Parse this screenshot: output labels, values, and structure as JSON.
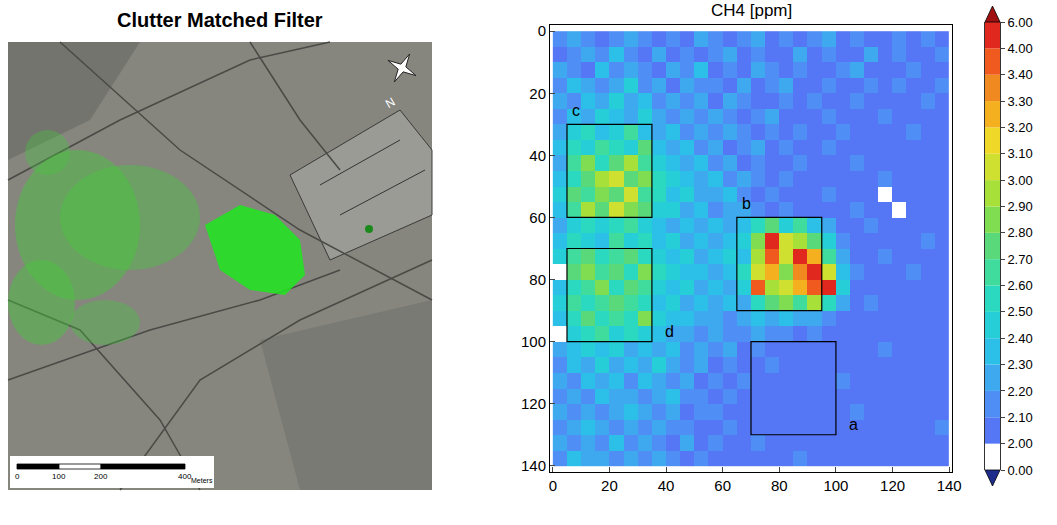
{
  "chart_data": [
    {
      "type": "map",
      "title": "Clutter Matched Filter",
      "north": "N",
      "scale_bar": {
        "ticks": [
          0,
          100,
          200,
          400
        ],
        "unit": "Meters"
      }
    },
    {
      "type": "heatmap",
      "title": "CH4 [ppm]",
      "x": [
        2.5,
        7.5,
        12.5,
        17.5,
        22.5,
        27.5,
        32.5,
        37.5,
        42.5,
        47.5,
        52.5,
        57.5,
        62.5,
        67.5,
        72.5,
        77.5,
        82.5,
        87.5,
        92.5,
        97.5,
        102.5,
        107.5,
        112.5,
        117.5,
        122.5,
        127.5,
        132.5,
        137.5
      ],
      "y": [
        2.5,
        7.5,
        12.5,
        17.5,
        22.5,
        27.5,
        32.5,
        37.5,
        42.5,
        47.5,
        52.5,
        57.5,
        62.5,
        67.5,
        72.5,
        77.5,
        82.5,
        87.5,
        92.5,
        97.5,
        102.5,
        107.5,
        112.5,
        117.5,
        122.5,
        127.5,
        132.5,
        137.5
      ],
      "z": [
        [
          2.1,
          2.2,
          2.1,
          2.05,
          2.1,
          2.2,
          2.1,
          2.05,
          2.1,
          2.05,
          2.2,
          2.1,
          2.05,
          2.1,
          2.2,
          2.05,
          2.1,
          2.05,
          2.1,
          2.2,
          2.05,
          2.1,
          2.05,
          2.05,
          2.1,
          2.05,
          2.1,
          2.05
        ],
        [
          2.05,
          2.1,
          2.2,
          2.1,
          2.3,
          2.1,
          2.05,
          2.2,
          2.05,
          2.1,
          2.05,
          2.1,
          2.2,
          2.05,
          2.1,
          2.05,
          2.05,
          2.2,
          2.05,
          2.1,
          2.05,
          2.05,
          2.2,
          2.05,
          2.1,
          2.05,
          2.05,
          2.1
        ],
        [
          2.2,
          2.1,
          2.05,
          2.3,
          2.1,
          2.2,
          2.1,
          2.05,
          2.2,
          2.1,
          2.3,
          2.05,
          2.1,
          2.05,
          2.2,
          2.1,
          2.05,
          2.1,
          2.05,
          2.05,
          2.1,
          2.2,
          2.05,
          2.05,
          2.05,
          2.1,
          2.05,
          2.05
        ],
        [
          2.1,
          2.3,
          2.2,
          2.1,
          2.2,
          2.4,
          2.1,
          2.2,
          2.05,
          2.2,
          2.1,
          2.1,
          2.05,
          2.2,
          2.05,
          2.1,
          2.2,
          2.05,
          2.05,
          2.1,
          2.05,
          2.05,
          2.1,
          2.05,
          2.15,
          2.05,
          2.05,
          2.1
        ],
        [
          2.2,
          2.1,
          2.3,
          2.2,
          2.4,
          2.2,
          2.3,
          2.1,
          2.2,
          2.1,
          2.2,
          2.05,
          2.2,
          2.1,
          2.05,
          2.05,
          2.1,
          2.05,
          2.1,
          2.05,
          2.05,
          2.1,
          2.05,
          2.05,
          2.05,
          2.05,
          2.1,
          2.05
        ],
        [
          2.1,
          2.3,
          2.2,
          2.4,
          2.3,
          2.2,
          2.4,
          2.2,
          2.1,
          2.2,
          2.1,
          2.2,
          2.1,
          2.05,
          2.1,
          2.2,
          2.05,
          2.05,
          2.05,
          2.1,
          2.05,
          2.05,
          2.05,
          2.1,
          2.05,
          2.05,
          2.05,
          2.05
        ],
        [
          2.2,
          2.4,
          2.5,
          2.3,
          2.4,
          2.6,
          2.3,
          2.2,
          2.3,
          2.1,
          2.2,
          2.1,
          2.2,
          2.1,
          2.05,
          2.1,
          2.05,
          2.1,
          2.05,
          2.05,
          2.1,
          2.05,
          2.05,
          2.05,
          2.05,
          2.1,
          2.05,
          2.05
        ],
        [
          2.3,
          2.5,
          2.4,
          2.6,
          2.5,
          2.4,
          2.7,
          2.3,
          2.2,
          2.3,
          2.1,
          2.2,
          2.05,
          2.1,
          2.2,
          2.05,
          2.1,
          2.05,
          2.05,
          2.1,
          2.05,
          2.05,
          2.05,
          2.05,
          2.05,
          2.05,
          2.05,
          2.05
        ],
        [
          2.2,
          2.6,
          2.8,
          2.5,
          2.7,
          2.9,
          2.6,
          2.4,
          2.3,
          2.2,
          2.3,
          2.1,
          2.2,
          2.05,
          2.1,
          2.05,
          2.05,
          2.1,
          2.05,
          2.05,
          2.05,
          2.1,
          2.05,
          2.05,
          2.05,
          2.05,
          2.05,
          2.05
        ],
        [
          2.3,
          2.5,
          2.7,
          2.9,
          3.0,
          2.7,
          2.8,
          2.5,
          2.4,
          2.3,
          2.2,
          2.3,
          2.1,
          2.2,
          2.1,
          2.05,
          2.1,
          2.05,
          2.05,
          2.05,
          2.05,
          2.05,
          2.05,
          2.1,
          2.05,
          2.05,
          2.05,
          2.05
        ],
        [
          2.4,
          2.7,
          2.6,
          2.8,
          2.7,
          3.0,
          2.6,
          2.5,
          2.3,
          2.4,
          2.2,
          2.2,
          2.3,
          2.1,
          2.05,
          2.1,
          2.05,
          2.05,
          2.05,
          2.1,
          2.05,
          2.05,
          2.05,
          1.5,
          2.05,
          2.05,
          2.05,
          2.05
        ],
        [
          2.3,
          2.6,
          2.9,
          2.7,
          3.1,
          2.8,
          2.7,
          2.4,
          2.4,
          2.2,
          2.3,
          2.1,
          2.2,
          2.2,
          2.1,
          2.05,
          2.1,
          2.05,
          2.05,
          2.05,
          2.05,
          2.1,
          2.05,
          2.05,
          1.5,
          2.05,
          2.05,
          2.05
        ],
        [
          2.2,
          2.4,
          2.5,
          2.4,
          2.5,
          2.6,
          2.4,
          2.3,
          2.2,
          2.3,
          2.2,
          2.3,
          2.2,
          2.3,
          2.5,
          2.7,
          2.4,
          2.6,
          2.3,
          2.2,
          2.05,
          2.05,
          2.1,
          2.05,
          2.05,
          2.05,
          2.05,
          2.05
        ],
        [
          2.3,
          2.5,
          2.4,
          2.3,
          2.6,
          2.4,
          2.5,
          2.3,
          2.4,
          2.2,
          2.3,
          2.2,
          2.3,
          2.4,
          2.8,
          4.0,
          3.1,
          2.9,
          2.7,
          2.4,
          2.1,
          2.05,
          2.05,
          2.05,
          2.05,
          2.05,
          2.1,
          2.05
        ],
        [
          2.4,
          2.6,
          2.7,
          2.5,
          2.6,
          2.7,
          2.5,
          2.4,
          2.3,
          2.4,
          2.2,
          2.3,
          2.4,
          2.3,
          2.9,
          3.4,
          3.0,
          4.0,
          3.2,
          2.6,
          2.2,
          2.05,
          2.05,
          2.1,
          2.05,
          2.05,
          2.05,
          2.05
        ],
        [
          1.5,
          2.7,
          2.8,
          2.6,
          2.7,
          2.5,
          2.8,
          2.5,
          2.4,
          2.3,
          2.3,
          2.2,
          2.3,
          2.5,
          3.0,
          3.2,
          2.8,
          3.3,
          4.0,
          3.0,
          2.3,
          2.1,
          2.05,
          2.05,
          2.05,
          2.1,
          2.05,
          2.05
        ],
        [
          2.3,
          2.5,
          2.6,
          2.8,
          2.5,
          2.7,
          2.6,
          2.4,
          2.3,
          2.4,
          2.2,
          2.3,
          2.2,
          2.4,
          3.4,
          2.9,
          3.0,
          3.2,
          3.5,
          4.0,
          2.4,
          2.05,
          2.05,
          2.05,
          2.05,
          2.05,
          2.05,
          2.05
        ],
        [
          2.4,
          2.6,
          2.5,
          2.6,
          2.7,
          2.6,
          2.5,
          2.3,
          2.4,
          2.2,
          2.3,
          2.2,
          2.3,
          2.2,
          2.5,
          2.7,
          2.8,
          2.6,
          2.9,
          2.5,
          2.2,
          2.05,
          2.1,
          2.05,
          2.05,
          2.05,
          2.05,
          2.05
        ],
        [
          2.3,
          2.5,
          2.7,
          2.5,
          2.6,
          2.5,
          2.8,
          2.4,
          2.3,
          2.3,
          2.2,
          2.2,
          2.1,
          2.2,
          2.3,
          2.2,
          2.3,
          2.2,
          2.2,
          2.1,
          2.05,
          2.05,
          2.05,
          2.05,
          2.05,
          2.05,
          2.05,
          2.05
        ],
        [
          1.5,
          2.4,
          2.5,
          2.6,
          2.4,
          2.5,
          2.4,
          2.3,
          2.2,
          2.2,
          2.1,
          2.2,
          2.1,
          2.1,
          2.2,
          2.1,
          2.1,
          2.05,
          2.1,
          2.05,
          2.05,
          2.05,
          2.05,
          2.05,
          2.05,
          2.05,
          2.05,
          2.05
        ],
        [
          2.2,
          2.3,
          2.4,
          2.3,
          2.4,
          2.2,
          2.3,
          2.2,
          2.3,
          2.1,
          2.2,
          2.1,
          2.2,
          2.05,
          2.1,
          2.05,
          2.05,
          2.05,
          2.05,
          2.05,
          2.05,
          2.05,
          2.05,
          2.1,
          2.05,
          2.05,
          2.05,
          2.05
        ],
        [
          2.1,
          2.3,
          2.2,
          2.4,
          2.2,
          2.3,
          2.2,
          2.4,
          2.2,
          2.1,
          2.2,
          2.05,
          2.1,
          2.05,
          2.05,
          2.1,
          2.05,
          2.05,
          2.05,
          2.05,
          2.05,
          2.05,
          2.05,
          2.05,
          2.05,
          2.05,
          2.05,
          2.05
        ],
        [
          2.2,
          2.1,
          2.3,
          2.2,
          2.3,
          2.1,
          2.3,
          2.2,
          2.1,
          2.2,
          2.05,
          2.1,
          2.05,
          2.1,
          2.05,
          2.05,
          2.05,
          2.05,
          2.05,
          2.05,
          2.1,
          2.05,
          2.05,
          2.05,
          2.05,
          2.05,
          2.05,
          2.05
        ],
        [
          2.1,
          2.2,
          2.1,
          2.3,
          2.2,
          2.2,
          2.1,
          2.2,
          2.3,
          2.1,
          2.1,
          2.05,
          2.1,
          2.05,
          2.05,
          2.05,
          2.05,
          2.05,
          2.05,
          2.05,
          2.05,
          2.05,
          2.05,
          2.05,
          2.05,
          2.05,
          2.05,
          2.05
        ],
        [
          2.2,
          2.1,
          2.2,
          2.1,
          2.2,
          2.3,
          2.2,
          2.1,
          2.2,
          2.05,
          2.1,
          2.1,
          2.05,
          2.05,
          2.05,
          2.05,
          2.05,
          2.05,
          2.05,
          2.05,
          2.05,
          2.1,
          2.05,
          2.05,
          2.05,
          2.05,
          2.05,
          2.05
        ],
        [
          2.1,
          2.2,
          2.3,
          2.2,
          2.1,
          2.2,
          2.1,
          2.2,
          2.1,
          2.1,
          2.05,
          2.05,
          2.1,
          2.05,
          2.05,
          2.05,
          2.05,
          2.05,
          2.05,
          2.05,
          2.05,
          2.05,
          2.05,
          2.05,
          2.05,
          2.05,
          2.05,
          2.1
        ],
        [
          2.2,
          2.1,
          2.2,
          2.1,
          2.3,
          2.1,
          2.2,
          2.1,
          2.05,
          2.2,
          2.05,
          2.1,
          2.05,
          2.05,
          2.1,
          2.05,
          2.05,
          2.05,
          2.05,
          2.05,
          2.05,
          2.05,
          2.05,
          2.05,
          2.05,
          2.05,
          2.05,
          2.05
        ],
        [
          2.1,
          2.3,
          2.2,
          2.2,
          2.1,
          2.2,
          2.1,
          2.2,
          2.1,
          2.05,
          2.1,
          2.05,
          2.05,
          2.05,
          2.05,
          2.05,
          2.05,
          2.1,
          2.05,
          2.05,
          2.05,
          2.05,
          2.05,
          2.05,
          2.05,
          2.05,
          2.05,
          2.05
        ]
      ],
      "xlim": [
        -1,
        141
      ],
      "ylim": [
        142,
        -2
      ],
      "xticks": [
        0,
        20,
        40,
        60,
        80,
        100,
        120,
        140
      ],
      "yticks": [
        0,
        20,
        40,
        60,
        80,
        100,
        120,
        140
      ],
      "colorbar": {
        "range": [
          0,
          6
        ],
        "ticks": [
          {
            "value": 0,
            "label": "0.00"
          },
          {
            "value": 2,
            "label": "2.00"
          },
          {
            "value": 2.1,
            "label": "2.10"
          },
          {
            "value": 2.2,
            "label": "2.20"
          },
          {
            "value": 2.3,
            "label": "2.30"
          },
          {
            "value": 2.4,
            "label": "2.40"
          },
          {
            "value": 2.5,
            "label": "2.50"
          },
          {
            "value": 2.6,
            "label": "2.60"
          },
          {
            "value": 2.7,
            "label": "2.70"
          },
          {
            "value": 2.8,
            "label": "2.80"
          },
          {
            "value": 2.9,
            "label": "2.90"
          },
          {
            "value": 3,
            "label": "3.00"
          },
          {
            "value": 3.1,
            "label": "3.10"
          },
          {
            "value": 3.2,
            "label": "3.20"
          },
          {
            "value": 3.3,
            "label": "3.30"
          },
          {
            "value": 3.4,
            "label": "3.40"
          },
          {
            "value": 4,
            "label": "4.00"
          },
          {
            "value": 6,
            "label": "6.00"
          }
        ],
        "colors": [
          "#ffffff",
          "#5576f5",
          "#4f8ff5",
          "#3fa9f0",
          "#2cc0e8",
          "#26cfd8",
          "#2ad9c0",
          "#3fdc9e",
          "#5ad97a",
          "#80dc50",
          "#a8e03a",
          "#d0e030",
          "#f0d828",
          "#f5b020",
          "#f08a20",
          "#f05a1e",
          "#e0281e"
        ],
        "extend_colors": [
          "#1e2d8c",
          "#a01010"
        ]
      },
      "boxes": [
        {
          "label": "c",
          "x": [
            5,
            35
          ],
          "y": [
            30,
            60
          ]
        },
        {
          "label": "d",
          "x": [
            5,
            35
          ],
          "y": [
            70,
            100
          ]
        },
        {
          "label": "b",
          "x": [
            65,
            95
          ],
          "y": [
            60,
            90
          ]
        },
        {
          "label": "a",
          "x": [
            70,
            100
          ],
          "y": [
            100,
            130
          ]
        }
      ]
    }
  ]
}
